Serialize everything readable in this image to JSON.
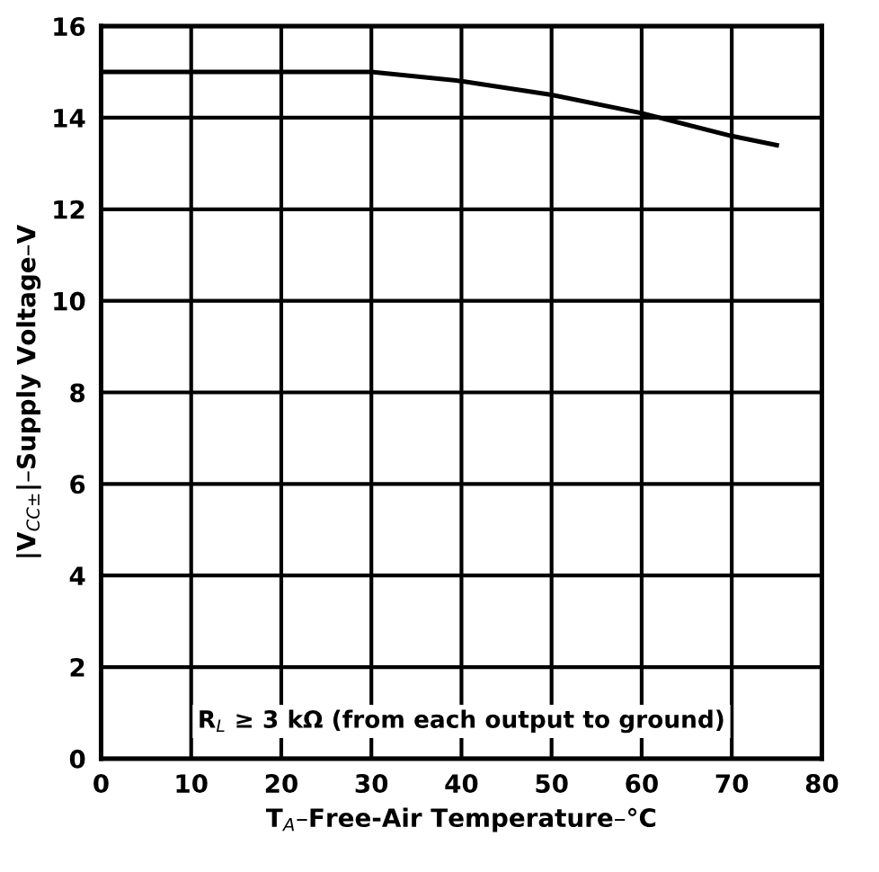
{
  "chart_data": {
    "type": "line",
    "xlabel": "T$_{A}$–Free-Air Temperature–°C",
    "ylabel": "|V$_{CC±}$|–Supply Voltage–V",
    "x": [
      0,
      10,
      20,
      30,
      40,
      50,
      60,
      70,
      75
    ],
    "series": [
      {
        "color": "#000000",
        "values": [
          15.0,
          15.0,
          15.0,
          15.0,
          14.8,
          14.5,
          14.1,
          13.6,
          13.4
        ]
      }
    ],
    "xlim": [
      0,
      80
    ],
    "xticks": [
      0,
      10,
      20,
      30,
      40,
      50,
      60,
      70,
      80
    ],
    "ylim": [
      0,
      16
    ],
    "yticks": [
      0,
      2,
      4,
      6,
      8,
      10,
      12,
      14,
      16
    ],
    "grid": true,
    "marker": "none",
    "line_style": "solid",
    "annotations": [
      "R$_{L}$ ≥ 3 kΩ (from each output to ground)"
    ]
  }
}
